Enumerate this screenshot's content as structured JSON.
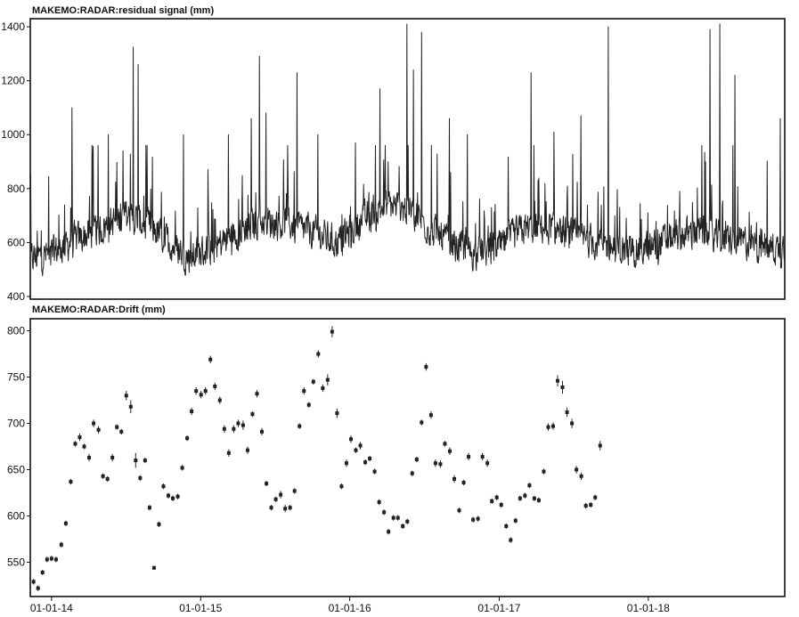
{
  "chart_data": [
    {
      "type": "line",
      "title": "MAKEMO:RADAR:residual signal (mm)",
      "xlabel": "",
      "ylabel": "",
      "ylim": [
        390,
        1430
      ],
      "yticks": [
        400,
        600,
        800,
        1000,
        1200,
        1400
      ],
      "xlim": [
        "2013-11-10",
        "2018-12-01"
      ],
      "grid": false,
      "color": "#222222",
      "series": [
        {
          "baseline": [
            [
              "2013-11-10",
              540
            ],
            [
              "2014-01-01",
              560
            ],
            [
              "2014-03-01",
              610
            ],
            [
              "2014-05-01",
              650
            ],
            [
              "2014-07-01",
              700
            ],
            [
              "2014-09-01",
              660
            ],
            [
              "2014-10-15",
              600
            ],
            [
              "2014-12-01",
              545
            ],
            [
              "2015-02-01",
              580
            ],
            [
              "2015-04-01",
              640
            ],
            [
              "2015-06-01",
              680
            ],
            [
              "2015-08-01",
              670
            ],
            [
              "2015-10-01",
              640
            ],
            [
              "2015-12-01",
              600
            ],
            [
              "2016-02-01",
              680
            ],
            [
              "2016-04-01",
              740
            ],
            [
              "2016-06-01",
              720
            ],
            [
              "2016-07-15",
              650
            ],
            [
              "2016-09-01",
              600
            ],
            [
              "2016-11-01",
              560
            ],
            [
              "2017-01-01",
              580
            ],
            [
              "2017-03-01",
              650
            ],
            [
              "2017-05-01",
              660
            ],
            [
              "2017-07-01",
              620
            ],
            [
              "2017-09-01",
              600
            ],
            [
              "2017-11-01",
              570
            ],
            [
              "2018-01-01",
              580
            ],
            [
              "2018-03-01",
              620
            ],
            [
              "2018-05-01",
              640
            ],
            [
              "2018-07-01",
              610
            ],
            [
              "2018-09-01",
              600
            ],
            [
              "2018-11-01",
              580
            ],
            [
              "2018-12-01",
              570
            ]
          ],
          "peaks": [
            [
              "2014-02-20",
              1100
            ],
            [
              "2014-04-10",
              960
            ],
            [
              "2014-05-20",
              1000
            ],
            [
              "2014-06-25",
              940
            ],
            [
              "2014-07-20",
              1325
            ],
            [
              "2014-08-01",
              1260
            ],
            [
              "2014-11-20",
              1000
            ],
            [
              "2015-03-10",
              1000
            ],
            [
              "2015-05-05",
              1060
            ],
            [
              "2015-05-25",
              1290
            ],
            [
              "2015-06-10",
              1080
            ],
            [
              "2015-08-25",
              1230
            ],
            [
              "2015-10-15",
              1000
            ],
            [
              "2016-01-15",
              970
            ],
            [
              "2016-03-15",
              1170
            ],
            [
              "2016-05-20",
              1410
            ],
            [
              "2016-06-05",
              1240
            ],
            [
              "2016-06-25",
              1380
            ],
            [
              "2016-09-01",
              1060
            ],
            [
              "2016-10-15",
              1000
            ],
            [
              "2017-03-20",
              1230
            ],
            [
              "2017-05-15",
              1010
            ],
            [
              "2017-07-20",
              1070
            ],
            [
              "2017-09-25",
              1400
            ],
            [
              "2018-06-01",
              1390
            ],
            [
              "2018-06-25",
              1410
            ],
            [
              "2018-08-01",
              1220
            ],
            [
              "2018-11-20",
              1060
            ]
          ]
        }
      ]
    },
    {
      "type": "scatter",
      "title": "MAKEMO:RADAR:Drift (mm)",
      "xlabel": "",
      "ylabel": "",
      "ylim": [
        513,
        813
      ],
      "yticks": [
        550,
        600,
        650,
        700,
        750,
        800
      ],
      "xlim": [
        "2013-11-10",
        "2018-12-01"
      ],
      "xticks": [
        "2014-01-01",
        "2015-01-01",
        "2016-01-01",
        "2017-01-01",
        "2018-01-01"
      ],
      "xticklabels": [
        "01-01-14",
        "01-01-15",
        "01-01-16",
        "01-01-17",
        "01-01-18"
      ],
      "grid": false,
      "color": "#222222",
      "series": [
        {
          "points": [
            [
              "2013-11-18",
              529,
              3
            ],
            [
              "2013-11-29",
              522,
              3
            ],
            [
              "2013-12-10",
              539,
              3
            ],
            [
              "2013-12-21",
              553,
              3
            ],
            [
              "2014-01-01",
              554,
              3
            ],
            [
              "2014-01-12",
              553,
              3
            ],
            [
              "2014-01-25",
              569,
              3
            ],
            [
              "2014-02-05",
              592,
              3
            ],
            [
              "2014-02-17",
              637,
              3
            ],
            [
              "2014-02-28",
              678,
              3
            ],
            [
              "2014-03-11",
              685,
              4
            ],
            [
              "2014-03-22",
              675,
              3
            ],
            [
              "2014-04-03",
              663,
              4
            ],
            [
              "2014-04-14",
              700,
              4
            ],
            [
              "2014-04-26",
              693,
              4
            ],
            [
              "2014-05-07",
              643,
              3
            ],
            [
              "2014-05-18",
              640,
              3
            ],
            [
              "2014-05-30",
              663,
              4
            ],
            [
              "2014-06-10",
              696,
              3
            ],
            [
              "2014-06-21",
              691,
              3
            ],
            [
              "2014-07-03",
              730,
              5
            ],
            [
              "2014-07-14",
              718,
              7
            ],
            [
              "2014-07-26",
              660,
              8
            ],
            [
              "2014-08-06",
              641,
              3
            ],
            [
              "2014-08-18",
              660,
              3
            ],
            [
              "2014-08-29",
              609,
              3
            ],
            [
              "2014-09-09",
              544,
              2
            ],
            [
              "2014-09-21",
              591,
              3
            ],
            [
              "2014-10-02",
              632,
              3
            ],
            [
              "2014-10-14",
              622,
              3
            ],
            [
              "2014-10-25",
              619,
              3
            ],
            [
              "2014-11-06",
              621,
              3
            ],
            [
              "2014-11-17",
              652,
              3
            ],
            [
              "2014-11-29",
              684,
              3
            ],
            [
              "2014-12-10",
              713,
              4
            ],
            [
              "2014-12-21",
              735,
              4
            ],
            [
              "2015-01-02",
              731,
              4
            ],
            [
              "2015-01-13",
              735,
              4
            ],
            [
              "2015-01-25",
              769,
              4
            ],
            [
              "2015-02-05",
              740,
              4
            ],
            [
              "2015-02-17",
              725,
              4
            ],
            [
              "2015-02-28",
              694,
              4
            ],
            [
              "2015-03-11",
              668,
              4
            ],
            [
              "2015-03-23",
              694,
              4
            ],
            [
              "2015-04-03",
              700,
              4
            ],
            [
              "2015-04-15",
              698,
              5
            ],
            [
              "2015-04-26",
              671,
              4
            ],
            [
              "2015-05-08",
              710,
              3
            ],
            [
              "2015-05-19",
              732,
              4
            ],
            [
              "2015-05-31",
              691,
              4
            ],
            [
              "2015-06-11",
              635,
              3
            ],
            [
              "2015-06-23",
              609,
              3
            ],
            [
              "2015-07-04",
              618,
              3
            ],
            [
              "2015-07-16",
              623,
              4
            ],
            [
              "2015-07-27",
              608,
              4
            ],
            [
              "2015-08-08",
              609,
              3
            ],
            [
              "2015-08-19",
              627,
              3
            ],
            [
              "2015-08-31",
              697,
              3
            ],
            [
              "2015-09-11",
              735,
              4
            ],
            [
              "2015-09-23",
              720,
              3
            ],
            [
              "2015-10-04",
              745,
              3
            ],
            [
              "2015-10-16",
              775,
              4
            ],
            [
              "2015-10-27",
              738,
              4
            ],
            [
              "2015-11-08",
              747,
              6
            ],
            [
              "2015-11-19",
              799,
              6
            ],
            [
              "2015-12-01",
              711,
              5
            ],
            [
              "2015-12-12",
              632,
              3
            ],
            [
              "2015-12-24",
              657,
              4
            ],
            [
              "2016-01-04",
              683,
              4
            ],
            [
              "2016-01-16",
              671,
              3
            ],
            [
              "2016-01-27",
              676,
              4
            ],
            [
              "2016-02-08",
              658,
              3
            ],
            [
              "2016-02-19",
              662,
              3
            ],
            [
              "2016-03-02",
              648,
              3
            ],
            [
              "2016-03-13",
              615,
              3
            ],
            [
              "2016-03-25",
              604,
              3
            ],
            [
              "2016-04-05",
              583,
              3
            ],
            [
              "2016-04-17",
              598,
              3
            ],
            [
              "2016-04-28",
              598,
              3
            ],
            [
              "2016-05-10",
              589,
              3
            ],
            [
              "2016-05-21",
              594,
              3
            ],
            [
              "2016-06-02",
              646,
              3
            ],
            [
              "2016-06-13",
              661,
              3
            ],
            [
              "2016-06-25",
              701,
              3
            ],
            [
              "2016-07-06",
              761,
              4
            ],
            [
              "2016-07-18",
              709,
              4
            ],
            [
              "2016-07-29",
              657,
              4
            ],
            [
              "2016-08-10",
              656,
              4
            ],
            [
              "2016-08-21",
              678,
              3
            ],
            [
              "2016-09-02",
              670,
              4
            ],
            [
              "2016-09-13",
              640,
              4
            ],
            [
              "2016-09-25",
              606,
              3
            ],
            [
              "2016-10-06",
              636,
              3
            ],
            [
              "2016-10-18",
              664,
              4
            ],
            [
              "2016-10-29",
              596,
              3
            ],
            [
              "2016-11-10",
              597,
              3
            ],
            [
              "2016-11-21",
              664,
              4
            ],
            [
              "2016-12-03",
              657,
              4
            ],
            [
              "2016-12-14",
              616,
              3
            ],
            [
              "2016-12-26",
              620,
              3
            ],
            [
              "2017-01-06",
              612,
              3
            ],
            [
              "2017-01-18",
              589,
              3
            ],
            [
              "2017-01-29",
              574,
              3
            ],
            [
              "2017-02-10",
              595,
              3
            ],
            [
              "2017-02-21",
              619,
              3
            ],
            [
              "2017-03-05",
              622,
              3
            ],
            [
              "2017-03-16",
              633,
              3
            ],
            [
              "2017-03-28",
              619,
              3
            ],
            [
              "2017-04-08",
              617,
              3
            ],
            [
              "2017-04-20",
              648,
              3
            ],
            [
              "2017-05-01",
              696,
              4
            ],
            [
              "2017-05-13",
              697,
              4
            ],
            [
              "2017-05-24",
              746,
              6
            ],
            [
              "2017-06-05",
              739,
              7
            ],
            [
              "2017-06-16",
              712,
              5
            ],
            [
              "2017-06-28",
              700,
              5
            ],
            [
              "2017-07-09",
              650,
              4
            ],
            [
              "2017-07-21",
              643,
              4
            ],
            [
              "2017-08-01",
              611,
              3
            ],
            [
              "2017-08-13",
              612,
              3
            ],
            [
              "2017-08-24",
              620,
              3
            ],
            [
              "2017-09-05",
              676,
              5
            ]
          ]
        }
      ]
    }
  ]
}
